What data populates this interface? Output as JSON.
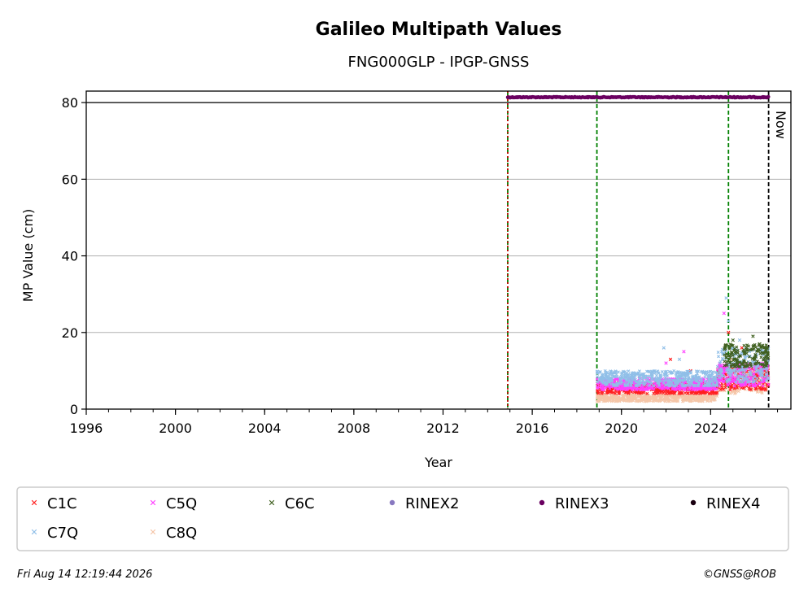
{
  "chart_data": {
    "type": "scatter",
    "title": "Galileo Multipath Values",
    "subtitle": "FNG000GLP - IPGP-GNSS",
    "xlabel": "Year",
    "ylabel": "MP Value (cm)",
    "xlim": [
      1996,
      2027.6
    ],
    "ylim": [
      0,
      83
    ],
    "xticks": [
      "1996",
      "2000",
      "2004",
      "2008",
      "2012",
      "2016",
      "2020",
      "2024"
    ],
    "yticks": [
      "0",
      "20",
      "40",
      "60",
      "80"
    ],
    "grid": "horizontal",
    "legend_position": "bottom",
    "now_label": "Now",
    "reference_line_y": 80,
    "vertical_lines": [
      {
        "x": 2014.9,
        "style": "dashed",
        "color": "#008000"
      },
      {
        "x": 2014.9,
        "style": "dotted",
        "color": "#cc0000"
      },
      {
        "x": 2018.9,
        "style": "dashed",
        "color": "#008000"
      },
      {
        "x": 2024.8,
        "style": "dashed",
        "color": "#008000"
      },
      {
        "x": 2026.6,
        "style": "dashed",
        "color": "#000000"
      }
    ],
    "series": [
      {
        "name": "C1C",
        "marker": "x",
        "color": "#ff2020",
        "bands": [
          {
            "x0": 2018.9,
            "x1": 2024.3,
            "y0": 4.0,
            "y1": 7.0
          },
          {
            "x0": 2024.3,
            "x1": 2026.6,
            "y0": 5.0,
            "y1": 11.0
          }
        ],
        "outliers": [
          [
            2022.2,
            13
          ],
          [
            2023.1,
            10
          ],
          [
            2024.8,
            20
          ],
          [
            2025.4,
            16
          ]
        ]
      },
      {
        "name": "C5Q",
        "marker": "x",
        "color": "#ff40ff",
        "bands": [
          {
            "x0": 2018.9,
            "x1": 2024.3,
            "y0": 5.0,
            "y1": 8.0
          },
          {
            "x0": 2024.3,
            "x1": 2026.6,
            "y0": 6.0,
            "y1": 12.0
          }
        ],
        "outliers": [
          [
            2022.0,
            12
          ],
          [
            2022.8,
            15
          ],
          [
            2024.6,
            25
          ]
        ]
      },
      {
        "name": "C6C",
        "marker": "x",
        "color": "#406020",
        "bands": [
          {
            "x0": 2024.6,
            "x1": 2026.6,
            "y0": 11.0,
            "y1": 17.0
          }
        ],
        "outliers": [
          [
            2025.0,
            18
          ],
          [
            2025.9,
            19
          ],
          [
            2026.2,
            17
          ]
        ]
      },
      {
        "name": "C7Q",
        "marker": "x",
        "color": "#90bfe8",
        "bands": [
          {
            "x0": 2018.9,
            "x1": 2024.3,
            "y0": 6.0,
            "y1": 10.0
          },
          {
            "x0": 2024.3,
            "x1": 2026.6,
            "y0": 7.0,
            "y1": 16.0
          }
        ],
        "outliers": [
          [
            2021.9,
            16
          ],
          [
            2022.6,
            13
          ],
          [
            2024.7,
            29
          ],
          [
            2024.8,
            23
          ],
          [
            2025.3,
            18
          ]
        ]
      },
      {
        "name": "C8Q",
        "marker": "x",
        "color": "#f5c6a8",
        "bands": [
          {
            "x0": 2018.9,
            "x1": 2024.3,
            "y0": 2.0,
            "y1": 3.8
          },
          {
            "x0": 2024.3,
            "x1": 2026.6,
            "y0": 4.0,
            "y1": 11.0
          }
        ],
        "outliers": [
          [
            2024.9,
            13
          ],
          [
            2025.5,
            12
          ]
        ]
      },
      {
        "name": "RINEX2",
        "marker": "o",
        "color": "#8878c0",
        "bands": [],
        "outliers": []
      },
      {
        "name": "RINEX3",
        "marker": "o",
        "color": "#6a0060",
        "bands": [
          {
            "x0": 2014.9,
            "x1": 2026.6,
            "y0": 81.4,
            "y1": 81.4
          }
        ],
        "outliers": []
      },
      {
        "name": "RINEX4",
        "marker": "o",
        "color": "#1a0010",
        "bands": [],
        "outliers": []
      }
    ]
  },
  "footer": {
    "timestamp": "Fri Aug 14 12:19:44 2026",
    "credit": "©GNSS@ROB"
  }
}
